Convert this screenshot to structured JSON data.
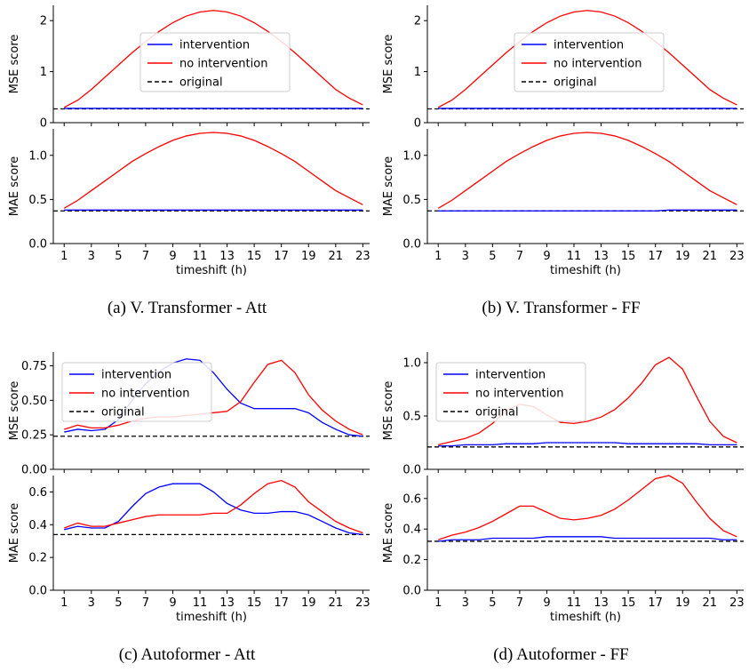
{
  "colors": {
    "intervention": "#0000ff",
    "no_intervention": "#ff0000",
    "original": "#000000"
  },
  "chart_data": [
    {
      "type": "line",
      "caption": "(a) V. Transformer - Att",
      "x": [
        1,
        2,
        3,
        4,
        5,
        6,
        7,
        8,
        9,
        10,
        11,
        12,
        13,
        14,
        15,
        16,
        17,
        18,
        19,
        20,
        21,
        22,
        23
      ],
      "xticks": [
        1,
        3,
        5,
        7,
        9,
        11,
        13,
        15,
        17,
        19,
        21,
        23
      ],
      "xlabel": "timeshift (h)",
      "legend": {
        "placement": "top-center",
        "entries": [
          "intervention",
          "no intervention",
          "original"
        ]
      },
      "top": {
        "ylabel": "MSE score",
        "ylim": [
          0,
          2.3
        ],
        "yticks": [
          0,
          1,
          2
        ],
        "ytick_labels": [
          "0",
          "1",
          "2"
        ],
        "original": 0.27,
        "series": [
          {
            "name": "intervention",
            "values": [
              0.28,
              0.28,
              0.28,
              0.28,
              0.28,
              0.28,
              0.28,
              0.28,
              0.28,
              0.28,
              0.28,
              0.28,
              0.28,
              0.28,
              0.28,
              0.28,
              0.28,
              0.28,
              0.28,
              0.28,
              0.28,
              0.28,
              0.28
            ]
          },
          {
            "name": "no intervention",
            "values": [
              0.3,
              0.44,
              0.65,
              0.89,
              1.13,
              1.37,
              1.59,
              1.79,
              1.96,
              2.09,
              2.17,
              2.2,
              2.17,
              2.09,
              1.96,
              1.79,
              1.59,
              1.37,
              1.13,
              0.89,
              0.65,
              0.48,
              0.35
            ]
          }
        ]
      },
      "bottom": {
        "ylabel": "MAE score",
        "ylim": [
          0,
          1.3
        ],
        "yticks": [
          0,
          0.5,
          1.0
        ],
        "ytick_labels": [
          "0.0",
          "0.5",
          "1.0"
        ],
        "original": 0.37,
        "series": [
          {
            "name": "intervention",
            "values": [
              0.38,
              0.38,
              0.38,
              0.38,
              0.38,
              0.38,
              0.38,
              0.38,
              0.38,
              0.38,
              0.38,
              0.38,
              0.38,
              0.38,
              0.38,
              0.38,
              0.38,
              0.38,
              0.38,
              0.38,
              0.38,
              0.38,
              0.38
            ]
          },
          {
            "name": "no intervention",
            "values": [
              0.4,
              0.49,
              0.6,
              0.71,
              0.82,
              0.93,
              1.02,
              1.1,
              1.17,
              1.22,
              1.25,
              1.26,
              1.25,
              1.22,
              1.17,
              1.1,
              1.02,
              0.93,
              0.82,
              0.71,
              0.6,
              0.52,
              0.44
            ]
          }
        ]
      }
    },
    {
      "type": "line",
      "caption": "(b) V. Transformer - FF",
      "x": [
        1,
        2,
        3,
        4,
        5,
        6,
        7,
        8,
        9,
        10,
        11,
        12,
        13,
        14,
        15,
        16,
        17,
        18,
        19,
        20,
        21,
        22,
        23
      ],
      "xticks": [
        1,
        3,
        5,
        7,
        9,
        11,
        13,
        15,
        17,
        19,
        21,
        23
      ],
      "xlabel": "timeshift (h)",
      "legend": {
        "placement": "top-center",
        "entries": [
          "intervention",
          "no intervention",
          "original"
        ]
      },
      "top": {
        "ylabel": "MSE score",
        "ylim": [
          0,
          2.3
        ],
        "yticks": [
          0,
          1,
          2
        ],
        "ytick_labels": [
          "0",
          "1",
          "2"
        ],
        "original": 0.27,
        "series": [
          {
            "name": "intervention",
            "values": [
              0.28,
              0.28,
              0.28,
              0.28,
              0.28,
              0.28,
              0.28,
              0.28,
              0.28,
              0.28,
              0.28,
              0.28,
              0.28,
              0.28,
              0.28,
              0.28,
              0.28,
              0.28,
              0.28,
              0.28,
              0.28,
              0.28,
              0.28
            ]
          },
          {
            "name": "no intervention",
            "values": [
              0.3,
              0.44,
              0.65,
              0.89,
              1.13,
              1.37,
              1.59,
              1.79,
              1.96,
              2.09,
              2.17,
              2.2,
              2.17,
              2.09,
              1.96,
              1.79,
              1.59,
              1.37,
              1.13,
              0.89,
              0.65,
              0.48,
              0.35
            ]
          }
        ]
      },
      "bottom": {
        "ylabel": "MAE score",
        "ylim": [
          0,
          1.3
        ],
        "yticks": [
          0,
          0.5,
          1.0
        ],
        "ytick_labels": [
          "0.0",
          "0.5",
          "1.0"
        ],
        "original": 0.37,
        "series": [
          {
            "name": "intervention",
            "values": [
              0.37,
              0.37,
              0.37,
              0.37,
              0.37,
              0.37,
              0.37,
              0.37,
              0.37,
              0.37,
              0.37,
              0.37,
              0.37,
              0.37,
              0.37,
              0.37,
              0.37,
              0.38,
              0.38,
              0.38,
              0.38,
              0.38,
              0.38
            ]
          },
          {
            "name": "no intervention",
            "values": [
              0.4,
              0.49,
              0.6,
              0.71,
              0.82,
              0.93,
              1.02,
              1.1,
              1.17,
              1.22,
              1.25,
              1.26,
              1.25,
              1.22,
              1.17,
              1.1,
              1.02,
              0.93,
              0.82,
              0.71,
              0.6,
              0.52,
              0.44
            ]
          }
        ]
      }
    },
    {
      "type": "line",
      "caption": "(c) Autoformer - Att",
      "x": [
        1,
        2,
        3,
        4,
        5,
        6,
        7,
        8,
        9,
        10,
        11,
        12,
        13,
        14,
        15,
        16,
        17,
        18,
        19,
        20,
        21,
        22,
        23
      ],
      "xticks": [
        1,
        3,
        5,
        7,
        9,
        11,
        13,
        15,
        17,
        19,
        21,
        23
      ],
      "xlabel": "timeshift (h)",
      "legend": {
        "placement": "top-left",
        "entries": [
          "intervention",
          "no intervention",
          "original"
        ]
      },
      "top": {
        "ylabel": "MSE score",
        "ylim": [
          0,
          0.85
        ],
        "yticks": [
          0,
          0.25,
          0.5,
          0.75
        ],
        "ytick_labels": [
          "0.00",
          "0.25",
          "0.50",
          "0.75"
        ],
        "original": 0.24,
        "series": [
          {
            "name": "intervention",
            "values": [
              0.27,
              0.29,
              0.28,
              0.29,
              0.36,
              0.5,
              0.62,
              0.71,
              0.77,
              0.8,
              0.79,
              0.7,
              0.58,
              0.48,
              0.44,
              0.44,
              0.44,
              0.44,
              0.41,
              0.34,
              0.29,
              0.25,
              0.24
            ]
          },
          {
            "name": "no intervention",
            "values": [
              0.29,
              0.32,
              0.3,
              0.3,
              0.32,
              0.35,
              0.37,
              0.38,
              0.38,
              0.39,
              0.4,
              0.41,
              0.42,
              0.49,
              0.63,
              0.76,
              0.79,
              0.7,
              0.54,
              0.43,
              0.35,
              0.29,
              0.25
            ]
          }
        ]
      },
      "bottom": {
        "ylabel": "MAE score",
        "ylim": [
          0,
          0.7
        ],
        "yticks": [
          0,
          0.2,
          0.4,
          0.6
        ],
        "ytick_labels": [
          "0.0",
          "0.2",
          "0.4",
          "0.6"
        ],
        "original": 0.34,
        "series": [
          {
            "name": "intervention",
            "values": [
              0.37,
              0.39,
              0.38,
              0.38,
              0.42,
              0.51,
              0.59,
              0.63,
              0.65,
              0.65,
              0.65,
              0.6,
              0.53,
              0.49,
              0.47,
              0.47,
              0.48,
              0.48,
              0.46,
              0.42,
              0.38,
              0.35,
              0.34
            ]
          },
          {
            "name": "no intervention",
            "values": [
              0.38,
              0.41,
              0.39,
              0.39,
              0.41,
              0.43,
              0.45,
              0.46,
              0.46,
              0.46,
              0.46,
              0.47,
              0.47,
              0.52,
              0.59,
              0.65,
              0.67,
              0.63,
              0.54,
              0.48,
              0.42,
              0.38,
              0.35
            ]
          }
        ]
      }
    },
    {
      "type": "line",
      "caption": "(d) Autoformer - FF",
      "x": [
        1,
        2,
        3,
        4,
        5,
        6,
        7,
        8,
        9,
        10,
        11,
        12,
        13,
        14,
        15,
        16,
        17,
        18,
        19,
        20,
        21,
        22,
        23
      ],
      "xticks": [
        1,
        3,
        5,
        7,
        9,
        11,
        13,
        15,
        17,
        19,
        21,
        23
      ],
      "xlabel": "timeshift (h)",
      "legend": {
        "placement": "top-left",
        "entries": [
          "intervention",
          "no intervention",
          "original"
        ]
      },
      "top": {
        "ylabel": "MSE score",
        "ylim": [
          0,
          1.1
        ],
        "yticks": [
          0,
          0.5,
          1.0
        ],
        "ytick_labels": [
          "0.0",
          "0.5",
          "1.0"
        ],
        "original": 0.21,
        "series": [
          {
            "name": "intervention",
            "values": [
              0.22,
              0.22,
              0.23,
              0.23,
              0.23,
              0.24,
              0.24,
              0.24,
              0.25,
              0.25,
              0.25,
              0.25,
              0.25,
              0.25,
              0.24,
              0.24,
              0.24,
              0.24,
              0.24,
              0.24,
              0.23,
              0.23,
              0.23
            ]
          },
          {
            "name": "no intervention",
            "values": [
              0.23,
              0.26,
              0.29,
              0.34,
              0.43,
              0.55,
              0.61,
              0.59,
              0.51,
              0.44,
              0.43,
              0.45,
              0.49,
              0.56,
              0.67,
              0.81,
              0.98,
              1.05,
              0.94,
              0.69,
              0.45,
              0.31,
              0.25
            ]
          }
        ]
      },
      "bottom": {
        "ylabel": "MAE score",
        "ylim": [
          0,
          0.75
        ],
        "yticks": [
          0,
          0.2,
          0.4,
          0.6
        ],
        "ytick_labels": [
          "0.0",
          "0.2",
          "0.4",
          "0.6"
        ],
        "original": 0.32,
        "series": [
          {
            "name": "intervention",
            "values": [
              0.32,
              0.33,
              0.33,
              0.33,
              0.34,
              0.34,
              0.34,
              0.34,
              0.35,
              0.35,
              0.35,
              0.35,
              0.35,
              0.34,
              0.34,
              0.34,
              0.34,
              0.34,
              0.34,
              0.34,
              0.34,
              0.33,
              0.33
            ]
          },
          {
            "name": "no intervention",
            "values": [
              0.33,
              0.36,
              0.38,
              0.41,
              0.45,
              0.5,
              0.55,
              0.55,
              0.51,
              0.47,
              0.46,
              0.47,
              0.49,
              0.53,
              0.59,
              0.66,
              0.73,
              0.75,
              0.7,
              0.58,
              0.47,
              0.39,
              0.35
            ]
          }
        ]
      }
    }
  ]
}
